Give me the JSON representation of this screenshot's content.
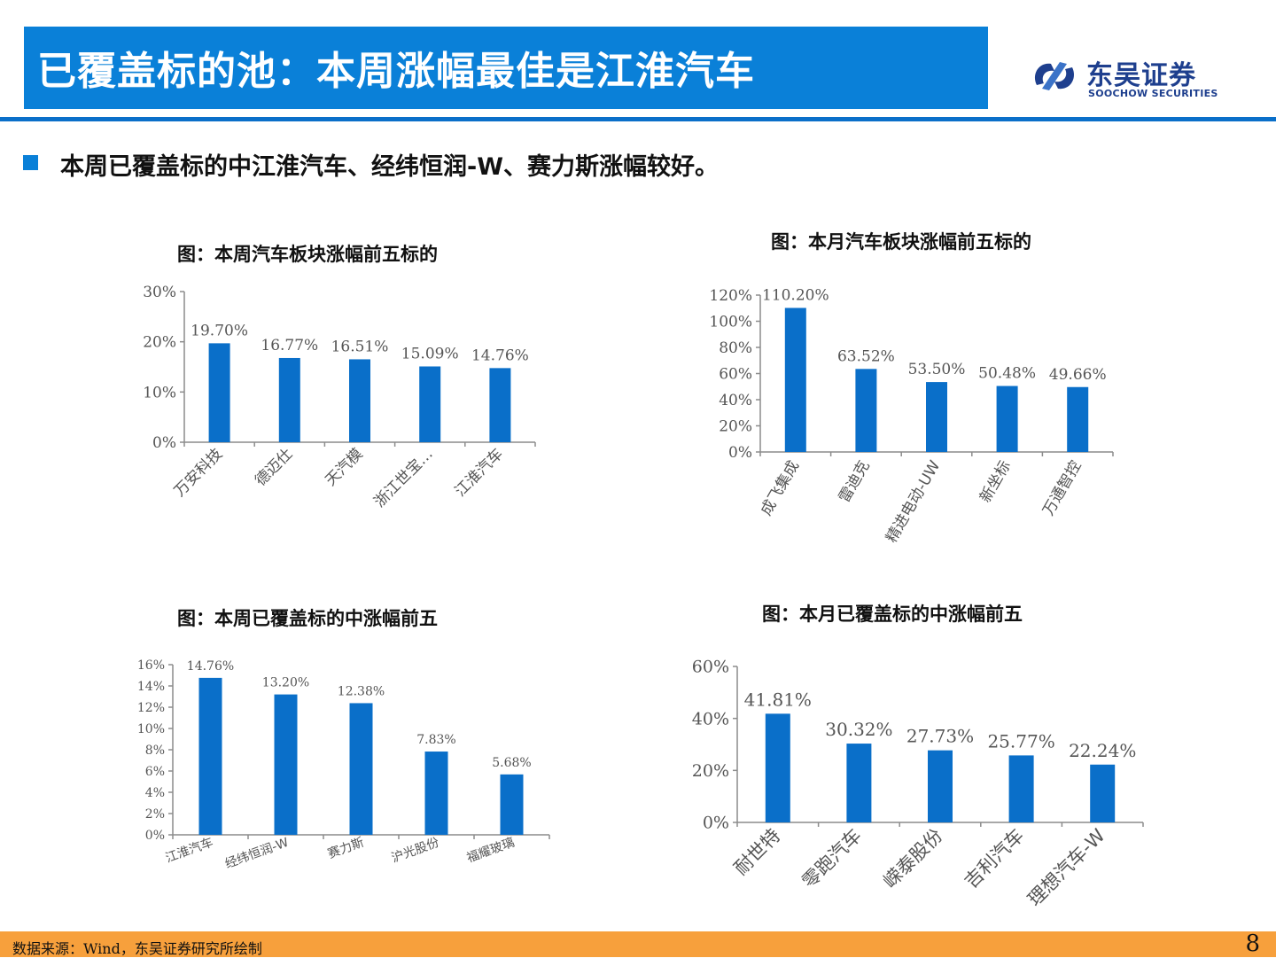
{
  "header": {
    "title": "已覆盖标的池：本周涨幅最佳是江淮汽车",
    "logo_cn": "东吴证券",
    "logo_en": "SOOCHOW SECURITIES"
  },
  "bullet": "本周已覆盖标的中江淮汽车、经纬恒润-W、赛力斯涨幅较好。",
  "footer": {
    "source": "数据来源：Wind，东吴证券研究所绘制",
    "page": "8"
  },
  "colors": {
    "bar": "#0a6fc9",
    "title_bar": "#0a80d8",
    "footer_bar": "#f7a03c"
  },
  "chart_data": [
    {
      "type": "bar",
      "title": "图：本周汽车板块涨幅前五标的",
      "categories": [
        "万安科技",
        "德迈仕",
        "天汽模",
        "浙江世宝…",
        "江淮汽车"
      ],
      "values": [
        19.7,
        16.77,
        16.51,
        15.09,
        14.76
      ],
      "labels": [
        "19.70%",
        "16.77%",
        "16.51%",
        "15.09%",
        "14.76%"
      ],
      "yticks": [
        "0%",
        "10%",
        "20%",
        "30%"
      ],
      "ylim": [
        0,
        30
      ]
    },
    {
      "type": "bar",
      "title": "图：本月汽车板块涨幅前五标的",
      "categories": [
        "成飞集成",
        "雷迪克",
        "精进电动-UW",
        "新坐标",
        "万通智控"
      ],
      "values": [
        110.2,
        63.52,
        53.5,
        50.48,
        49.66
      ],
      "labels": [
        "110.20%",
        "63.52%",
        "53.50%",
        "50.48%",
        "49.66%"
      ],
      "yticks": [
        "0%",
        "20%",
        "40%",
        "60%",
        "80%",
        "100%",
        "120%"
      ],
      "ylim": [
        0,
        120
      ]
    },
    {
      "type": "bar",
      "title": "图：本周已覆盖标的中涨幅前五",
      "categories": [
        "江淮汽车",
        "经纬恒润-W",
        "赛力斯",
        "沪光股份",
        "福耀玻璃"
      ],
      "values": [
        14.76,
        13.2,
        12.38,
        7.83,
        5.68
      ],
      "labels": [
        "14.76%",
        "13.20%",
        "12.38%",
        "7.83%",
        "5.68%"
      ],
      "yticks": [
        "0%",
        "2%",
        "4%",
        "6%",
        "8%",
        "10%",
        "12%",
        "14%",
        "16%"
      ],
      "ylim": [
        0,
        16
      ]
    },
    {
      "type": "bar",
      "title": "图：本月已覆盖标的中涨幅前五",
      "categories": [
        "耐世特",
        "零跑汽车",
        "嵘泰股份",
        "吉利汽车",
        "理想汽车-W"
      ],
      "values": [
        41.81,
        30.32,
        27.73,
        25.77,
        22.24
      ],
      "labels": [
        "41.81%",
        "30.32%",
        "27.73%",
        "25.77%",
        "22.24%"
      ],
      "yticks": [
        "0%",
        "20%",
        "40%",
        "60%"
      ],
      "ylim": [
        0,
        60
      ]
    }
  ]
}
